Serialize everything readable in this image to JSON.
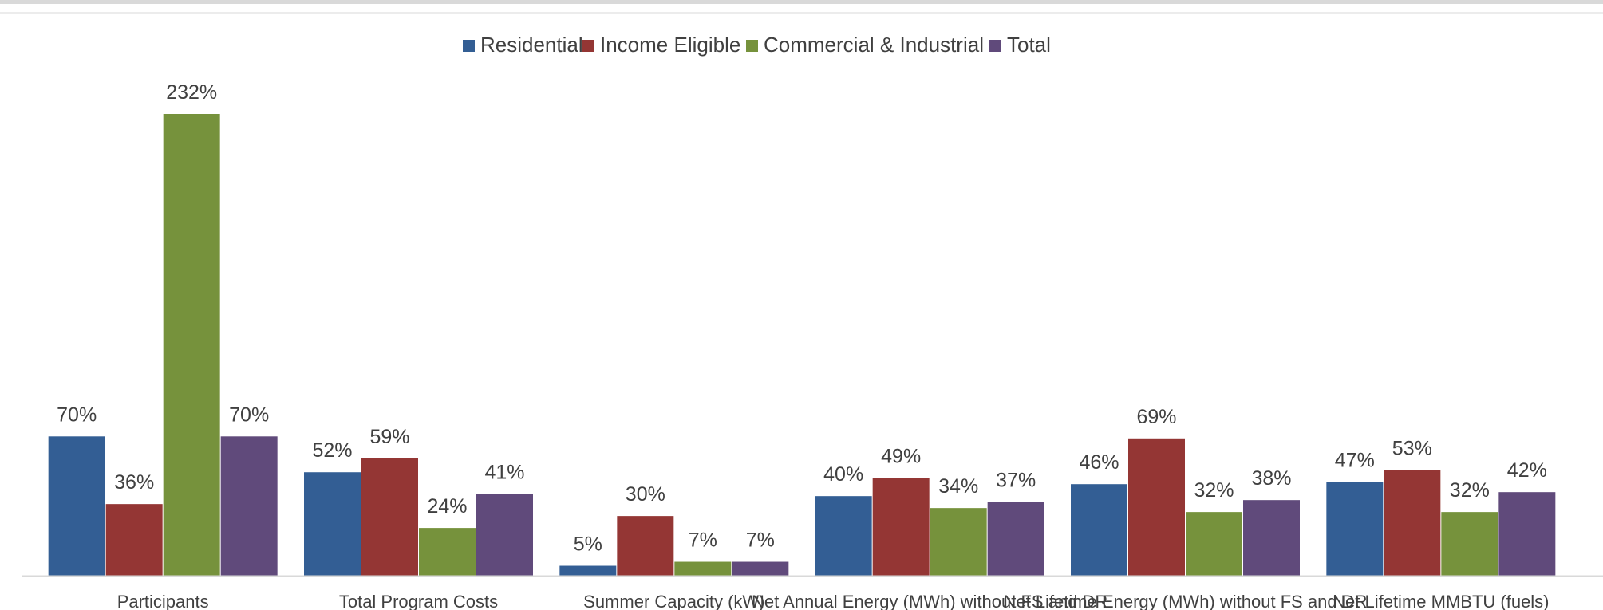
{
  "chart_data": {
    "type": "bar",
    "categories": [
      "Participants",
      "Total Program Costs",
      "Summer Capacity (kW)",
      "Net Annual Energy (MWh) without FS and DR",
      "Net Lifetime Energy (MWh) without FS and DR",
      "Net Lifetime MMBTU (fuels)"
    ],
    "series": [
      {
        "name": "Residential",
        "color": "#335e94",
        "values": [
          70,
          52,
          5,
          40,
          46,
          47
        ]
      },
      {
        "name": "Income Eligible",
        "color": "#943634",
        "values": [
          36,
          59,
          30,
          49,
          69,
          53
        ]
      },
      {
        "name": "Commercial & Industrial",
        "color": "#76923c",
        "values": [
          232,
          24,
          7,
          34,
          32,
          32
        ]
      },
      {
        "name": "Total",
        "color": "#604a7b",
        "values": [
          70,
          41,
          7,
          37,
          38,
          42
        ]
      }
    ],
    "value_suffix": "%",
    "title": "",
    "xlabel": "",
    "ylabel": "",
    "ylim": [
      0,
      232
    ],
    "grid": false,
    "legend_position": "top-center"
  },
  "colors": {
    "axis": "#d9d9d9",
    "text": "#404040"
  }
}
